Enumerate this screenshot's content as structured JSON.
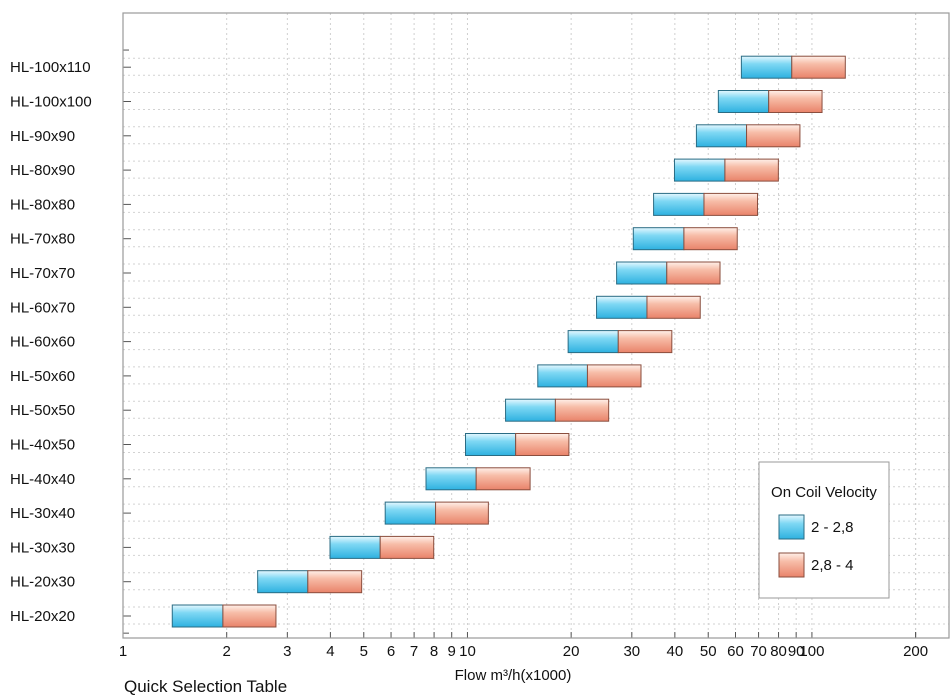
{
  "chart_data": {
    "type": "bar",
    "subtype": "floating-horizontal-range",
    "title": "",
    "xlabel": "Flow m³/h(x1000)",
    "ylabel": "",
    "x_scale": "log",
    "xlim": [
      1,
      250
    ],
    "grid": true,
    "legend_position": "right",
    "x_ticks": [
      {
        "value": 1,
        "label": "1"
      },
      {
        "value": 2,
        "label": "2"
      },
      {
        "value": 3,
        "label": "3"
      },
      {
        "value": 4,
        "label": "4"
      },
      {
        "value": 5,
        "label": "5"
      },
      {
        "value": 6,
        "label": "6"
      },
      {
        "value": 7,
        "label": "7"
      },
      {
        "value": 8,
        "label": "8"
      },
      {
        "value": 9,
        "label": "9"
      },
      {
        "value": 10,
        "label": "10"
      },
      {
        "value": 20,
        "label": "20"
      },
      {
        "value": 30,
        "label": "30"
      },
      {
        "value": 40,
        "label": "40"
      },
      {
        "value": 50,
        "label": "50"
      },
      {
        "value": 60,
        "label": "60"
      },
      {
        "value": 70,
        "label": "70"
      },
      {
        "value": 80,
        "label": "80"
      },
      {
        "value": 90,
        "label": "90"
      },
      {
        "value": 100,
        "label": "100"
      },
      {
        "value": 200,
        "label": "200"
      }
    ],
    "categories": [
      "HL-20x20",
      "HL-20x30",
      "HL-30x30",
      "HL-30x40",
      "HL-40x40",
      "HL-40x50",
      "HL-50x50",
      "HL-50x60",
      "HL-60x60",
      "HL-60x70",
      "HL-70x70",
      "HL-70x80",
      "HL-80x80",
      "HL-80x90",
      "HL-90x90",
      "HL-100x100",
      "HL-100x110"
    ],
    "legend_title": "On Coil Velocity",
    "series": [
      {
        "name": "2 - 2,8",
        "color": "#4cc4ea",
        "ranges": [
          [
            1.39,
            1.95
          ],
          [
            2.46,
            3.44
          ],
          [
            3.99,
            5.58
          ],
          [
            5.77,
            8.08
          ],
          [
            7.58,
            10.6
          ],
          [
            9.87,
            13.8
          ],
          [
            12.9,
            18.0
          ],
          [
            16.0,
            22.3
          ],
          [
            19.6,
            27.4
          ],
          [
            23.7,
            33.2
          ],
          [
            27.1,
            37.9
          ],
          [
            30.3,
            42.5
          ],
          [
            34.7,
            48.6
          ],
          [
            39.9,
            55.9
          ],
          [
            46.2,
            64.6
          ],
          [
            53.5,
            74.9
          ],
          [
            62.4,
            87.4
          ]
        ]
      },
      {
        "name": "2,8 - 4",
        "color": "#f0a48c",
        "ranges": [
          [
            1.95,
            2.78
          ],
          [
            3.44,
            4.93
          ],
          [
            5.58,
            7.98
          ],
          [
            8.08,
            11.5
          ],
          [
            10.6,
            15.2
          ],
          [
            13.8,
            19.7
          ],
          [
            18.0,
            25.7
          ],
          [
            22.3,
            31.9
          ],
          [
            27.4,
            39.2
          ],
          [
            33.2,
            47.4
          ],
          [
            37.9,
            54.1
          ],
          [
            42.5,
            60.7
          ],
          [
            48.6,
            69.5
          ],
          [
            55.9,
            79.9
          ],
          [
            64.6,
            92.3
          ],
          [
            74.9,
            107
          ],
          [
            87.4,
            125
          ]
        ]
      }
    ],
    "caption": "Quick Selection Table"
  }
}
